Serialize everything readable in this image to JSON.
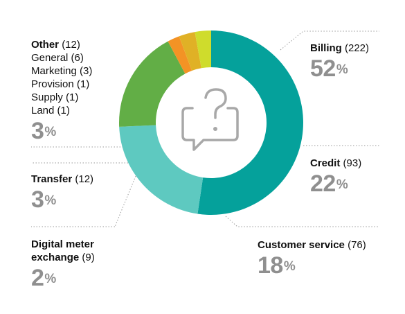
{
  "chart_data": {
    "type": "pie",
    "donut": true,
    "center_icon": "question-speech-bubble-icon",
    "slices": [
      {
        "label": "Billing",
        "count": "(222)",
        "value": 222,
        "percent": "52",
        "color": "#05a19b"
      },
      {
        "label": "Credit",
        "count": "(93)",
        "value": 93,
        "percent": "22",
        "color": "#5ec9c0"
      },
      {
        "label": "Customer service",
        "count": "(76)",
        "value": 76,
        "percent": "18",
        "color": "#62ae46"
      },
      {
        "label": "Digital meter exchange",
        "count": "(9)",
        "value": 9,
        "percent": "2",
        "color": "#f39325"
      },
      {
        "label": "Transfer",
        "count": "(12)",
        "value": 12,
        "percent": "3",
        "color": "#e0b126"
      },
      {
        "label": "Other",
        "count": "(12)",
        "value": 12,
        "percent": "3",
        "color": "#cfdc2c",
        "breakdown": [
          {
            "label": "General",
            "count": "(6)"
          },
          {
            "label": "Marketing",
            "count": "(3)"
          },
          {
            "label": "Provision",
            "count": "(1)"
          },
          {
            "label": "Supply",
            "count": "(1)"
          },
          {
            "label": "Land",
            "count": "(1)"
          }
        ]
      }
    ],
    "percent_sign": "%",
    "leader_color": "#9a9a9a"
  }
}
